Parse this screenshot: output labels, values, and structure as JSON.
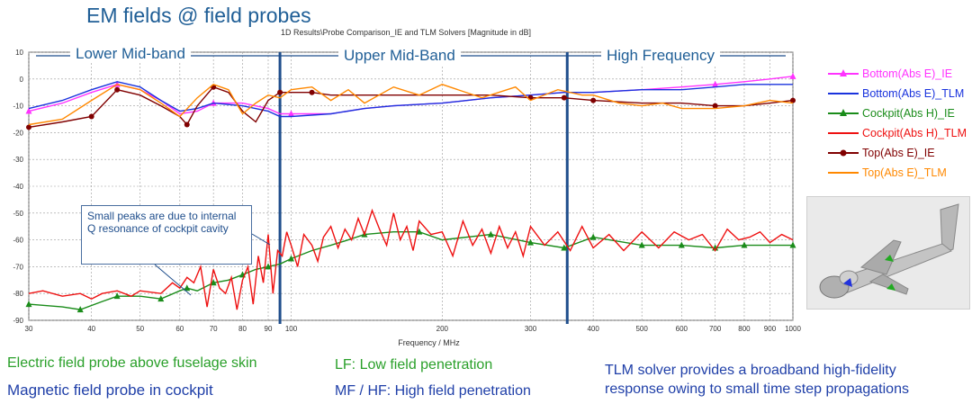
{
  "slide_title": "EM fields @ field probes",
  "bands": [
    "Lower Mid-band",
    "Upper Mid-Band",
    "High Frequency"
  ],
  "callout": "Small peaks are due to internal Q resonance of cockpit cavity",
  "bottom_left": [
    "Electric field probe above fuselage skin",
    "Magnetic field probe in cockpit"
  ],
  "bottom_mid": [
    "LF: Low field penetration",
    "MF / HF: High field penetration"
  ],
  "bottom_right": [
    "TLM solver provides a broadband high-fidelity",
    "response owing to small time step propagations"
  ],
  "colors": {
    "title": "#1f5e96",
    "green_text": "#2aa02a",
    "blue_text": "#1f3fa8",
    "band_text": "#1f5e96",
    "divider": "#1f4e8c"
  },
  "chart_data": {
    "type": "line",
    "title": "1D Results\\Probe Comparison_IE and TLM Solvers [Magnitude in dB]",
    "xlabel": "Frequency / MHz",
    "ylabel": "",
    "xscale": "log",
    "xlim": [
      30,
      1000
    ],
    "ylim": [
      -90,
      10
    ],
    "grid": true,
    "legend_position": "right",
    "xticks": [
      30,
      40,
      50,
      60,
      70,
      80,
      90,
      100,
      200,
      300,
      400,
      500,
      600,
      700,
      800,
      900,
      1000
    ],
    "xtick_labels": [
      "30",
      "40",
      "50",
      "60",
      "70",
      "80",
      "90",
      "100",
      "200",
      "300",
      "400",
      "500",
      "600",
      "700",
      "800",
      "900",
      "1000"
    ],
    "yticks": [
      10,
      0,
      -10,
      -20,
      -30,
      -40,
      -50,
      -60,
      -70,
      -80,
      -90
    ],
    "band_dividers_mhz": [
      95,
      355
    ],
    "series": [
      {
        "name": "Bottom(Abs E)_IE",
        "color": "#ff33ff",
        "marker": "triangle",
        "markers_x": [
          30,
          45,
          70,
          100,
          700,
          1000
        ],
        "x": [
          30,
          35,
          40,
          45,
          50,
          55,
          60,
          65,
          70,
          80,
          90,
          95,
          100,
          120,
          140,
          160,
          200,
          250,
          300,
          350,
          400,
          500,
          600,
          700,
          800,
          900,
          1000
        ],
        "y": [
          -12,
          -9,
          -5,
          -2,
          -4,
          -8,
          -13,
          -12,
          -9,
          -9,
          -11,
          -13,
          -13,
          -13,
          -11,
          -10,
          -9,
          -7,
          -6,
          -5,
          -5,
          -4,
          -3,
          -2,
          -1,
          0,
          1
        ]
      },
      {
        "name": "Bottom(Abs E)_TLM",
        "color": "#1a33dd",
        "marker": "none",
        "x": [
          30,
          35,
          40,
          45,
          50,
          55,
          60,
          65,
          70,
          80,
          90,
          95,
          100,
          120,
          140,
          160,
          200,
          250,
          300,
          350,
          400,
          500,
          600,
          700,
          800,
          900,
          1000
        ],
        "y": [
          -11,
          -8,
          -4,
          -1,
          -3,
          -8,
          -12,
          -11,
          -9,
          -10,
          -12,
          -14,
          -14,
          -13,
          -11,
          -10,
          -9,
          -7,
          -6,
          -5,
          -5,
          -4,
          -4,
          -3,
          -2,
          -2,
          -2
        ]
      },
      {
        "name": "Cockpit(Abs H)_IE",
        "color": "#1a8c1a",
        "marker": "triangle",
        "markers_x": [
          30,
          38,
          45,
          55,
          62,
          70,
          80,
          90,
          100,
          140,
          180,
          250,
          300,
          350,
          400,
          500,
          600,
          700,
          800,
          1000
        ],
        "x": [
          30,
          35,
          38,
          42,
          45,
          50,
          55,
          60,
          62,
          65,
          70,
          75,
          80,
          85,
          90,
          95,
          100,
          110,
          120,
          130,
          140,
          160,
          180,
          200,
          250,
          300,
          350,
          400,
          500,
          600,
          700,
          800,
          900,
          1000
        ],
        "y": [
          -84,
          -85,
          -86,
          -83,
          -81,
          -81,
          -82,
          -79,
          -78,
          -79,
          -76,
          -75,
          -73,
          -71,
          -70,
          -69,
          -67,
          -64,
          -62,
          -60,
          -58,
          -57,
          -57,
          -60,
          -58,
          -61,
          -63,
          -59,
          -62,
          -62,
          -63,
          -62,
          -62,
          -62
        ]
      },
      {
        "name": "Cockpit(Abs H)_TLM",
        "color": "#ee1111",
        "marker": "none",
        "x": [
          30,
          32,
          35,
          38,
          40,
          42,
          45,
          48,
          50,
          55,
          58,
          60,
          62,
          64,
          66,
          68,
          70,
          72,
          74,
          76,
          78,
          80,
          82,
          84,
          86,
          88,
          90,
          92,
          94,
          96,
          98,
          100,
          103,
          106,
          110,
          113,
          116,
          120,
          124,
          128,
          132,
          136,
          140,
          145,
          150,
          155,
          160,
          165,
          170,
          175,
          180,
          190,
          200,
          210,
          220,
          230,
          240,
          250,
          260,
          270,
          280,
          290,
          300,
          320,
          340,
          360,
          380,
          400,
          430,
          460,
          500,
          540,
          580,
          620,
          660,
          700,
          740,
          780,
          820,
          860,
          900,
          950,
          1000
        ],
        "y": [
          -80,
          -79,
          -81,
          -80,
          -82,
          -80,
          -79,
          -81,
          -79,
          -80,
          -76,
          -78,
          -74,
          -76,
          -70,
          -85,
          -71,
          -78,
          -80,
          -74,
          -86,
          -75,
          -70,
          -84,
          -66,
          -76,
          -58,
          -80,
          -64,
          -66,
          -57,
          -62,
          -70,
          -58,
          -62,
          -68,
          -59,
          -55,
          -63,
          -56,
          -60,
          -52,
          -58,
          -49,
          -56,
          -62,
          -50,
          -60,
          -55,
          -64,
          -53,
          -58,
          -57,
          -66,
          -53,
          -62,
          -56,
          -65,
          -55,
          -63,
          -57,
          -66,
          -55,
          -62,
          -57,
          -64,
          -55,
          -63,
          -58,
          -64,
          -57,
          -63,
          -57,
          -60,
          -58,
          -64,
          -56,
          -60,
          -59,
          -57,
          -61,
          -58,
          -60
        ]
      },
      {
        "name": "Top(Abs E)_IE",
        "color": "#800000",
        "marker": "circle",
        "markers_x": [
          30,
          40,
          45,
          62,
          70,
          95,
          110,
          300,
          350,
          400,
          700,
          1000
        ],
        "x": [
          30,
          35,
          40,
          45,
          50,
          55,
          60,
          62,
          65,
          70,
          75,
          80,
          85,
          90,
          95,
          100,
          110,
          120,
          140,
          160,
          200,
          250,
          300,
          350,
          400,
          500,
          600,
          700,
          800,
          900,
          1000
        ],
        "y": [
          -18,
          -16,
          -14,
          -4,
          -6,
          -10,
          -14,
          -17,
          -10,
          -3,
          -5,
          -12,
          -16,
          -8,
          -5,
          -5,
          -5,
          -6,
          -6,
          -6,
          -6,
          -6,
          -7,
          -7,
          -8,
          -9,
          -9,
          -10,
          -10,
          -9,
          -8
        ]
      },
      {
        "name": "Top(Abs E)_TLM",
        "color": "#ff8800",
        "marker": "none",
        "x": [
          30,
          35,
          40,
          45,
          50,
          55,
          60,
          65,
          70,
          75,
          80,
          85,
          90,
          95,
          100,
          110,
          120,
          130,
          140,
          160,
          180,
          200,
          240,
          280,
          300,
          340,
          380,
          400,
          450,
          500,
          550,
          600,
          700,
          800,
          900,
          1000
        ],
        "y": [
          -17,
          -15,
          -8,
          -2,
          -4,
          -9,
          -14,
          -7,
          -2,
          -4,
          -13,
          -9,
          -6,
          -7,
          -4,
          -3,
          -8,
          -4,
          -9,
          -3,
          -6,
          -2,
          -7,
          -3,
          -8,
          -4,
          -6,
          -6,
          -9,
          -10,
          -9,
          -11,
          -11,
          -10,
          -8,
          -9
        ]
      }
    ]
  }
}
